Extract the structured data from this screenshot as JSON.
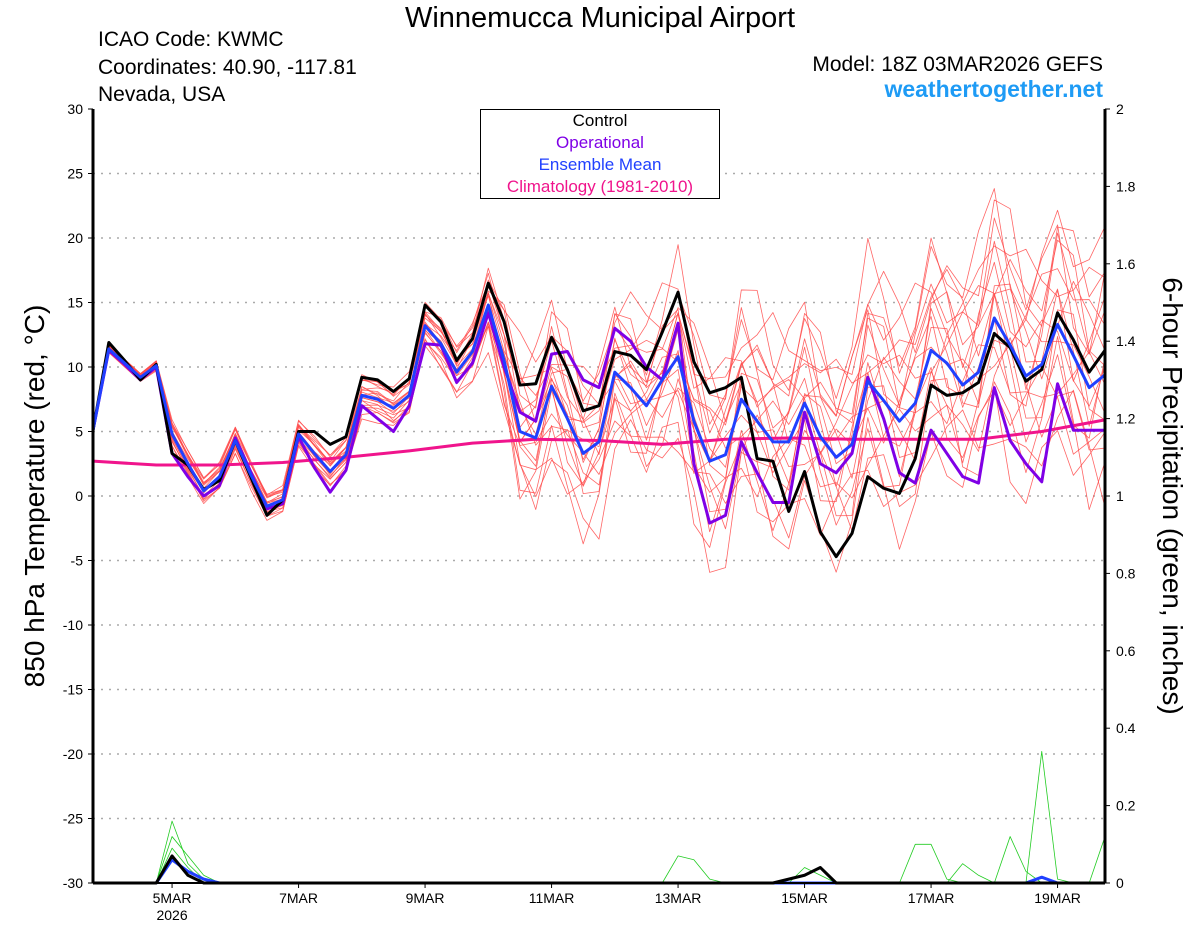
{
  "header": {
    "title": "Winnemucca Municipal Airport",
    "icao": "ICAO Code: KWMC",
    "coordinates": "Coordinates: 40.90, -117.81",
    "region": "Nevada, USA",
    "model": "Model: 18Z 03MAR2026 GEFS",
    "site": "weathertogether.net"
  },
  "legend": {
    "control": "Control",
    "operational": "Operational",
    "mean": "Ensemble Mean",
    "climatology": "Climatology (1981-2010)"
  },
  "colors": {
    "control": "#000000",
    "operational": "#7f00e6",
    "mean": "#2040ff",
    "climatology": "#f0148c",
    "members": "#ff4a4a",
    "precip": "#22cc22",
    "site": "#1e9bf5"
  },
  "chart_data": {
    "type": "line",
    "x_unit": "6-hour step from 18Z 03MAR2026",
    "x_range": [
      0,
      64
    ],
    "ylabel": "850 hPa Temperature (red, °C)",
    "ylabel_right": "6-hour Precipitation (green, inches)",
    "ylim": [
      -30,
      30
    ],
    "ylim_right": [
      0,
      2
    ],
    "grid": true,
    "legend_position": "top-center",
    "y_ticks": [
      -30,
      -25,
      -20,
      -15,
      -10,
      -5,
      0,
      5,
      10,
      15,
      20,
      25,
      30
    ],
    "y_ticks_right": [
      "0",
      "0.2",
      "0.4",
      "0.6",
      "0.8",
      "1",
      "1.2",
      "1.4",
      "1.6",
      "1.8",
      "2"
    ],
    "x_ticks": [
      {
        "x": 5,
        "label": "5MAR",
        "sub": "2026"
      },
      {
        "x": 13,
        "label": "7MAR"
      },
      {
        "x": 21,
        "label": "9MAR"
      },
      {
        "x": 29,
        "label": "11MAR"
      },
      {
        "x": 37,
        "label": "13MAR"
      },
      {
        "x": 45,
        "label": "15MAR"
      },
      {
        "x": 53,
        "label": "17MAR"
      },
      {
        "x": 61,
        "label": "19MAR"
      }
    ],
    "series": {
      "control": [
        5.1,
        11.9,
        10.5,
        9.0,
        10.2,
        3.3,
        2.4,
        0.5,
        1.2,
        4.3,
        1.4,
        -1.5,
        -0.3,
        5.0,
        5.0,
        4.0,
        4.6,
        9.2,
        9.0,
        8.1,
        9.1,
        14.8,
        13.5,
        10.5,
        12.2,
        16.5,
        13.5,
        8.6,
        8.7,
        12.3,
        9.8,
        6.6,
        7.0,
        11.2,
        10.9,
        9.8,
        12.7,
        15.8,
        10.4,
        8.0,
        8.4,
        9.2,
        2.9,
        2.7,
        -1.2,
        1.9,
        -2.8,
        -4.7,
        -2.9,
        1.5,
        0.6,
        0.2,
        2.9,
        8.6,
        7.8,
        8.0,
        8.8,
        12.6,
        11.5,
        8.9,
        9.8,
        14.2,
        12.1,
        9.6,
        11.3
      ],
      "operational": [
        5.1,
        11.3,
        10.2,
        9.0,
        10.0,
        3.3,
        1.5,
        0.0,
        0.8,
        4.5,
        1.8,
        -1.0,
        -0.6,
        4.6,
        2.2,
        0.3,
        2.0,
        7.0,
        6.0,
        5.0,
        7.0,
        11.8,
        11.7,
        8.8,
        10.3,
        14.2,
        10.0,
        6.5,
        5.8,
        11.0,
        11.2,
        9.0,
        8.4,
        13.0,
        12.0,
        10.0,
        9.0,
        13.4,
        2.5,
        -2.1,
        -1.5,
        4.2,
        1.8,
        -0.5,
        -0.5,
        6.5,
        2.5,
        1.8,
        3.3,
        9.2,
        6.0,
        1.8,
        1.0,
        5.1,
        3.3,
        1.5,
        1.0,
        8.4,
        4.3,
        2.5,
        1.1,
        8.7,
        5.1,
        5.1,
        5.1
      ],
      "mean": [
        5.1,
        11.4,
        10.3,
        9.2,
        10.1,
        4.8,
        2.5,
        0.4,
        1.5,
        4.3,
        1.6,
        -0.8,
        -0.3,
        4.8,
        3.3,
        1.9,
        3.2,
        7.8,
        7.5,
        6.8,
        7.8,
        13.2,
        11.8,
        9.6,
        11.2,
        14.8,
        10.5,
        5.0,
        4.5,
        8.5,
        6.0,
        3.3,
        4.2,
        9.6,
        8.4,
        7.0,
        9.0,
        10.8,
        5.8,
        2.7,
        3.2,
        7.5,
        5.8,
        4.2,
        4.2,
        7.2,
        4.6,
        3.0,
        4.0,
        8.9,
        7.4,
        5.8,
        7.2,
        11.3,
        10.3,
        8.6,
        9.6,
        13.8,
        11.7,
        9.3,
        10.2,
        13.3,
        10.9,
        8.4,
        9.4
      ],
      "climatology": {
        "x": [
          0,
          4,
          8,
          12,
          16,
          20,
          24,
          28,
          32,
          36,
          40,
          44,
          48,
          52,
          56,
          60,
          64
        ],
        "y": [
          2.7,
          2.4,
          2.4,
          2.6,
          3.0,
          3.5,
          4.1,
          4.4,
          4.3,
          4.0,
          4.4,
          4.5,
          4.4,
          4.4,
          4.4,
          5.0,
          5.9
        ]
      },
      "ensemble_spread": [
        0.3,
        0.3,
        0.3,
        0.3,
        0.4,
        1.0,
        1.0,
        1.0,
        1.0,
        1.0,
        1.0,
        1.0,
        1.0,
        1.0,
        1.2,
        1.2,
        1.2,
        1.5,
        1.5,
        1.5,
        1.5,
        1.5,
        1.8,
        1.8,
        2.0,
        2.5,
        4.0,
        5.0,
        5.0,
        5.0,
        5.0,
        5.0,
        5.0,
        5.0,
        5.0,
        5.0,
        5.0,
        6.0,
        6.0,
        6.5,
        6.5,
        6.5,
        6.5,
        6.5,
        6.5,
        6.5,
        6.5,
        6.5,
        7.0,
        7.0,
        7.0,
        7.0,
        7.0,
        7.0,
        7.0,
        7.5,
        7.5,
        7.5,
        7.5,
        7.5,
        7.5,
        8.0,
        8.0,
        8.0,
        8.0
      ],
      "member_offsets": [
        -1.0,
        -0.85,
        -0.7,
        -0.55,
        -0.45,
        -0.35,
        -0.25,
        -0.15,
        -0.05,
        0.05,
        0.15,
        0.25,
        0.35,
        0.45,
        0.55,
        0.65,
        0.75,
        0.85,
        0.95,
        1.0
      ]
    },
    "precip": {
      "control": {
        "5": 0.07,
        "6": 0.02,
        "44": 0.01,
        "45": 0.02,
        "46": 0.04
      },
      "mean": {
        "5": 0.06,
        "6": 0.03,
        "7": 0.01,
        "60": 0.015
      },
      "members": [
        {
          "5": 0.16,
          "6": 0.05,
          "7": 0.01
        },
        {
          "5": 0.12,
          "6": 0.07,
          "7": 0.02
        },
        {
          "5": 0.09,
          "6": 0.04
        },
        {
          "37": 0.07,
          "38": 0.06,
          "39": 0.01
        },
        {
          "52": 0.1,
          "53": 0.1,
          "54": 0.01
        },
        {
          "60": 0.34,
          "61": 0.01
        },
        {
          "58": 0.12,
          "59": 0.03
        },
        {
          "64": 0.12
        },
        {
          "45": 0.04,
          "46": 0.02
        },
        {
          "55": 0.05,
          "56": 0.02
        }
      ]
    }
  }
}
